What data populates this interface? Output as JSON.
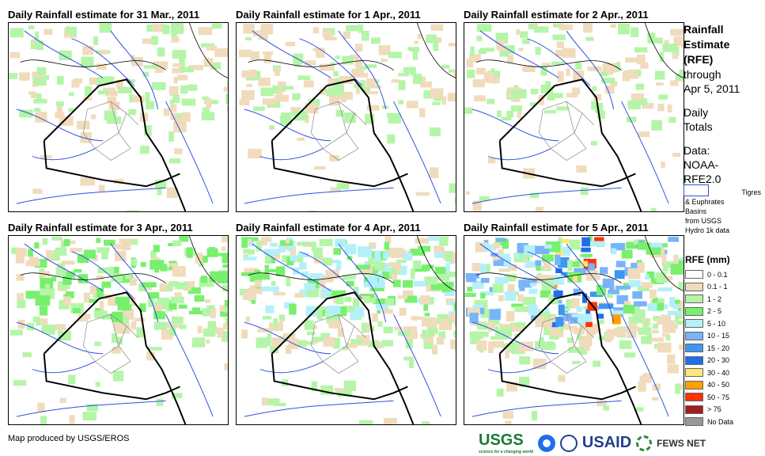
{
  "panels": [
    {
      "title": "Daily Rainfall estimate for 31 Mar., 2011",
      "intensity": 1
    },
    {
      "title": "Daily Rainfall estimate for 1 Apr., 2011",
      "intensity": 1
    },
    {
      "title": "Daily Rainfall estimate for 2 Apr., 2011",
      "intensity": 1
    },
    {
      "title": "Daily Rainfall estimate for 3 Apr., 2011",
      "intensity": 2
    },
    {
      "title": "Daily Rainfall estimate for 4 Apr., 2011",
      "intensity": 3
    },
    {
      "title": "Daily Rainfall estimate for 5 Apr., 2011",
      "intensity": 4
    }
  ],
  "side": {
    "title1": "Rainfall",
    "title2": "Estimate",
    "title3": "(RFE)",
    "through": "through",
    "date": "Apr 5, 2011",
    "daily": "Daily",
    "totals": "Totals",
    "data": "Data:",
    "source1": "NOAA-",
    "source2": "RFE2.0",
    "basin_lines": [
      "Tigres",
      "& Euphrates",
      "Basins",
      "from USGS",
      "Hydro 1k data"
    ]
  },
  "legend": {
    "title": "RFE (mm)",
    "items": [
      {
        "label": "0 - 0.1",
        "color": "#ffffff"
      },
      {
        "label": "0.1 - 1",
        "color": "#f0dcbc"
      },
      {
        "label": "1 - 2",
        "color": "#b4f5a8"
      },
      {
        "label": "2 - 5",
        "color": "#78f06e"
      },
      {
        "label": "5 - 10",
        "color": "#b4f0fa"
      },
      {
        "label": "10 - 15",
        "color": "#78b4fa"
      },
      {
        "label": "15 - 20",
        "color": "#3c96f5"
      },
      {
        "label": "20 - 30",
        "color": "#1e6eeb"
      },
      {
        "label": "30 - 40",
        "color": "#ffe678"
      },
      {
        "label": "40 - 50",
        "color": "#ffa000"
      },
      {
        "label": "50 - 75",
        "color": "#ff3200"
      },
      {
        "label": "> 75",
        "color": "#a01e1e"
      },
      {
        "label": "No Data",
        "color": "#999999"
      }
    ]
  },
  "footer": "Map produced by USGS/EROS",
  "logos": {
    "usgs": "USGS",
    "usgs_tag": "science for a changing world",
    "usaid": "USAID",
    "fews": "FEWS NET"
  }
}
